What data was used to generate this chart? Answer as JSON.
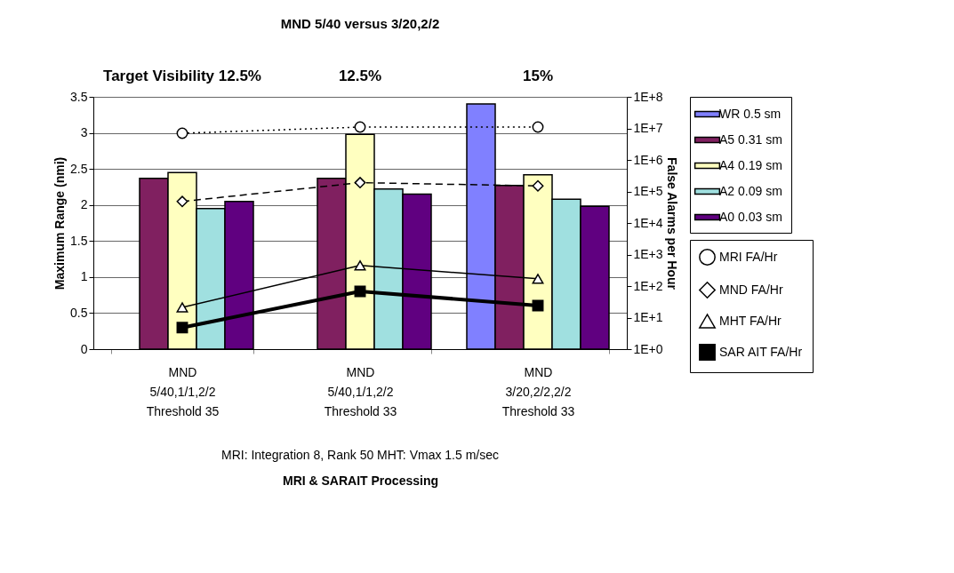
{
  "chart_data": {
    "type": "bar",
    "title": "MND 5/40 versus 3/20,2/2",
    "categories": [
      "MND\n5/40,1/1,2/2\nThreshold 35",
      "MND\n5/40,1/1,2/2\nThreshold 33",
      "MND\n3/20,2/2,2/2\nThreshold 33"
    ],
    "xlabel": "MRI & SARAIT Processing",
    "ylabel": "Maximum Range (nmi)",
    "y2label": "False Alarms per Hour",
    "ylim": [
      0,
      3.5
    ],
    "yticks": [
      0,
      0.5,
      1,
      1.5,
      2,
      2.5,
      3,
      3.5
    ],
    "y2lim": [
      1,
      100000000
    ],
    "y2ticks": [
      {
        "value": 1,
        "label": "1E+0"
      },
      {
        "value": 10,
        "label": "1E+1"
      },
      {
        "value": 100,
        "label": "1E+2"
      },
      {
        "value": 1000,
        "label": "1E+3"
      },
      {
        "value": 10000,
        "label": "1E+4"
      },
      {
        "value": 100000,
        "label": "1E+5"
      },
      {
        "value": 1000000,
        "label": "1E+6"
      },
      {
        "value": 10000000,
        "label": "1E+7"
      },
      {
        "value": 100000000,
        "label": "1E+8"
      }
    ],
    "log": "y2",
    "grid": "y",
    "legend": "right",
    "series": [
      {
        "name": "WR 0.5 sm",
        "color": "#8080ff",
        "values": [
          null,
          null,
          3.4
        ]
      },
      {
        "name": "A5 0.31 sm",
        "color": "#802060",
        "values": [
          2.37,
          2.37,
          2.27
        ]
      },
      {
        "name": "A4 0.19 sm",
        "color": "#ffffc0",
        "values": [
          2.45,
          2.98,
          2.42
        ]
      },
      {
        "name": "A2 0.09 sm",
        "color": "#a0e0e0",
        "values": [
          1.95,
          2.22,
          2.08
        ]
      },
      {
        "name": "A0 0.03 sm",
        "color": "#600080",
        "values": [
          2.05,
          2.15,
          1.98
        ]
      },
      {
        "name": "MRI FA/Hr",
        "type": "line",
        "axis": "y2",
        "color": "#000000",
        "marker": "circle",
        "line_style": "dotted",
        "values": [
          7000000,
          11000000,
          11000000
        ]
      },
      {
        "name": "MND FA/Hr",
        "type": "line",
        "axis": "y2",
        "color": "#000000",
        "marker": "diamond",
        "line_style": "dashed",
        "values": [
          48000,
          190000,
          150000
        ]
      },
      {
        "name": "MHT FA/Hr",
        "type": "line",
        "axis": "y2",
        "color": "#000000",
        "marker": "triangle",
        "line_style": "solid",
        "values": [
          21,
          450,
          170
        ]
      },
      {
        "name": "SAR AIT FA/Hr",
        "type": "line",
        "axis": "y2",
        "color": "#000000",
        "marker": "square",
        "line_style": "solid",
        "values": [
          4.8,
          68,
          24
        ]
      }
    ],
    "annotations": [
      "Target Visibility 12.5%",
      "12.5%",
      "15%",
      "MRI: Integration 8, Rank 50   MHT: Vmax 1.5 m/sec"
    ]
  }
}
